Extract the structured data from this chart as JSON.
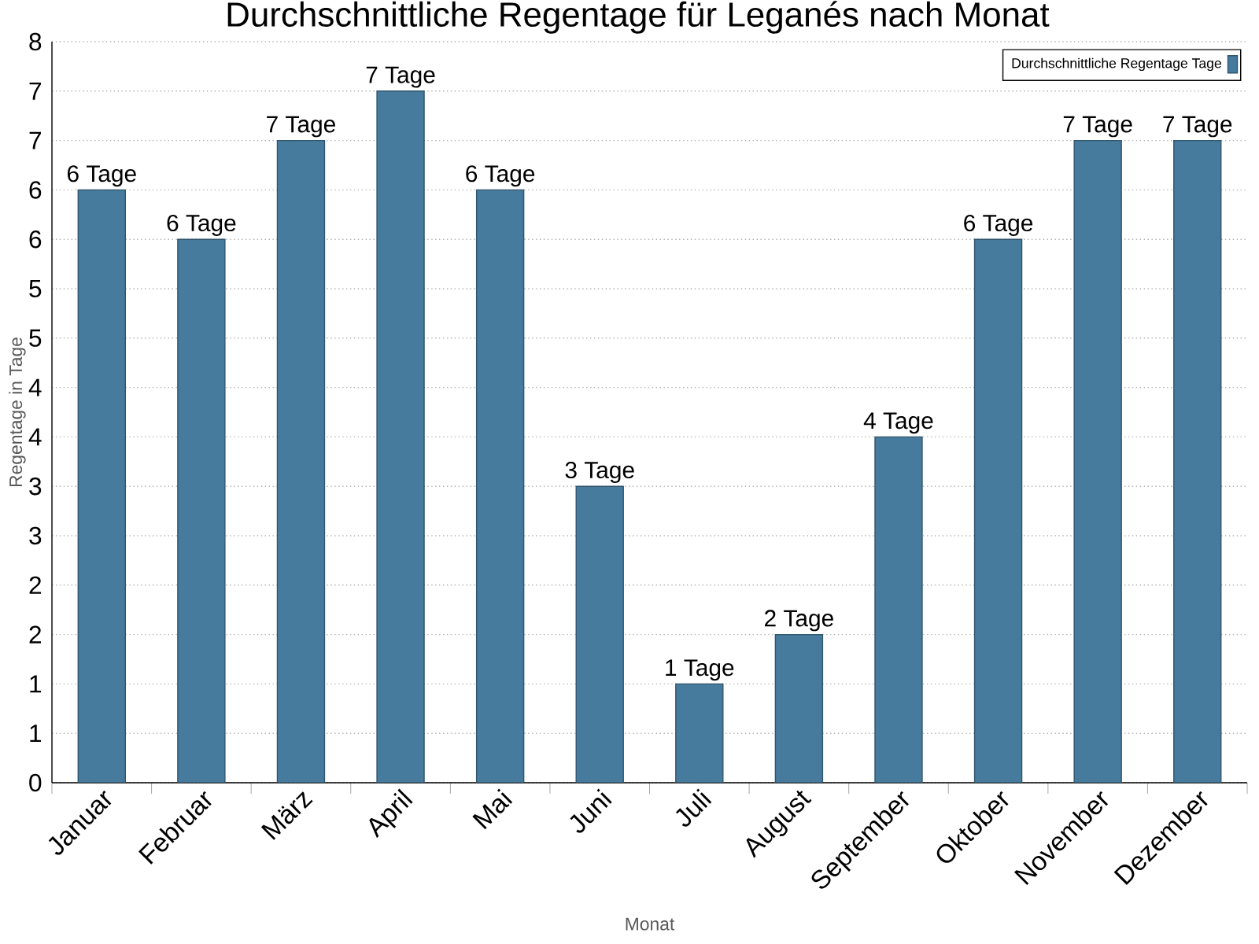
{
  "chart_data": {
    "type": "bar",
    "title": "Durchschnittliche Regentage für Leganés nach Monat",
    "xlabel": "Monat",
    "ylabel": "Regentage in Tage",
    "categories": [
      "Januar",
      "Februar",
      "März",
      "April",
      "Mai",
      "Juni",
      "Juli",
      "August",
      "September",
      "Oktober",
      "November",
      "Dezember"
    ],
    "series": [
      {
        "name": "Durchschnittliche Regentage Tage",
        "color": "#467b9d",
        "values": [
          6,
          5.5,
          6.5,
          7,
          6,
          3,
          1,
          1.5,
          3.5,
          5.5,
          6.5,
          6.5
        ],
        "value_labels": [
          "6 Tage",
          "6 Tage",
          "7 Tage",
          "7 Tage",
          "6 Tage",
          "3 Tage",
          "1 Tage",
          "2 Tage",
          "4 Tage",
          "6 Tage",
          "7 Tage",
          "7 Tage"
        ]
      }
    ],
    "ylim": [
      0,
      7.5
    ],
    "yticks": [
      0,
      {
        "value": 0.5,
        "label": "1"
      },
      1,
      {
        "value": 1.5,
        "label": "2"
      },
      2,
      {
        "value": 2.5,
        "label": "3"
      },
      3,
      {
        "value": 3.5,
        "label": "4"
      },
      4,
      {
        "value": 4.5,
        "label": "5"
      },
      5,
      {
        "value": 5.5,
        "label": "6"
      },
      6,
      {
        "value": 6.5,
        "label": "7"
      },
      7,
      {
        "value": 7.5,
        "label": "8"
      }
    ],
    "grid": "y",
    "legend": "top right"
  }
}
